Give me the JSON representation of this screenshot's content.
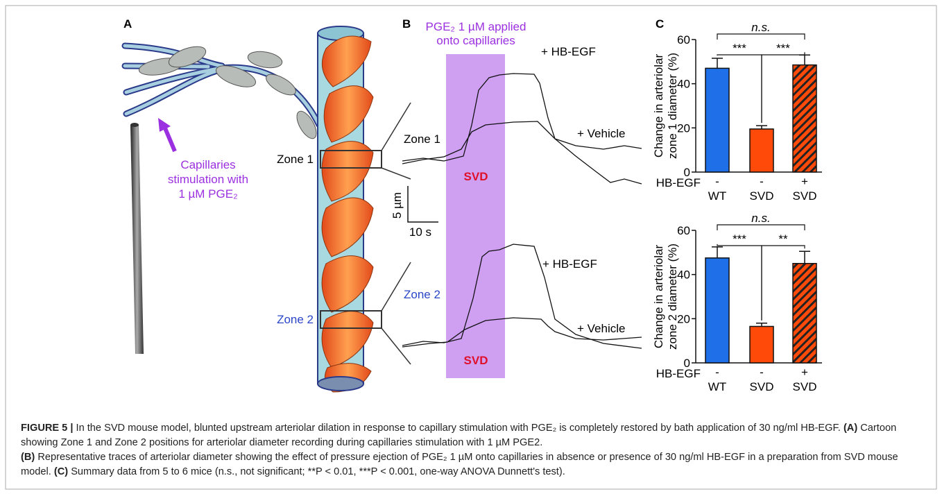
{
  "panels": {
    "a": "A",
    "b": "B",
    "c": "C"
  },
  "cartoon": {
    "zone1": "Zone 1",
    "zone2": "Zone 2",
    "stimulation": [
      "Capillaries",
      "stimulation with",
      "1 µM PGE₂"
    ]
  },
  "traces": {
    "application": [
      "PGE₂ 1 µM applied",
      "onto capillaries"
    ],
    "hb_egf_1": "+ HB-EGF",
    "vehicle_1": "+ Vehicle",
    "svd_1": "SVD",
    "zone1": "Zone 1",
    "hb_egf_2": "+ HB-EGF",
    "vehicle_2": "+ Vehicle",
    "svd_2": "SVD",
    "zone2": "Zone 2",
    "scale_y": "5 µm",
    "scale_x": "10 s"
  },
  "chart_data": [
    {
      "type": "bar",
      "ylabel": [
        "Change in arteriolar",
        "zone 1 diameter (%)"
      ],
      "row_label": "HB-EGF",
      "hb_egf": [
        "-",
        "-",
        "+"
      ],
      "categories": [
        "WT",
        "SVD",
        "SVD"
      ],
      "values": [
        47,
        19.5,
        48.5
      ],
      "errors": [
        4.5,
        1.5,
        4.5
      ],
      "colors": [
        "#1e6fe8",
        "#ff4a0a",
        "#ff4a0a"
      ],
      "hatch": [
        false,
        false,
        true
      ],
      "significance": [
        "***",
        "***",
        "n.s."
      ],
      "ylim": [
        0,
        60
      ],
      "yticks": [
        0,
        20,
        40,
        60
      ]
    },
    {
      "type": "bar",
      "ylabel": [
        "Change in arteriolar",
        "zone 2 diameter (%)"
      ],
      "row_label": "HB-EGF",
      "hb_egf": [
        "-",
        "-",
        "+"
      ],
      "categories": [
        "WT",
        "SVD",
        "SVD"
      ],
      "values": [
        47.5,
        16.5,
        45
      ],
      "errors": [
        5,
        1.5,
        5.5
      ],
      "colors": [
        "#1e6fe8",
        "#ff4a0a",
        "#ff4a0a"
      ],
      "hatch": [
        false,
        false,
        true
      ],
      "significance": [
        "***",
        "**",
        "n.s."
      ],
      "ylim": [
        0,
        60
      ],
      "yticks": [
        0,
        20,
        40,
        60
      ]
    }
  ],
  "caption": {
    "label": "FIGURE 5 |",
    "intro": "In the SVD mouse model, blunted upstream arteriolar dilation in response to capillary stimulation with PGE₂ is completely restored by bath application of 30 ng/ml HB-EGF.",
    "a_label": "(A)",
    "a_text": "Cartoon showing Zone 1 and Zone 2 positions for arteriolar diameter recording during capillaries stimulation with 1 µM PGE2.",
    "b_label": "(B)",
    "b_text": "Representative traces of arteriolar diameter showing the effect of pressure ejection of PGE₂ 1 µM onto capillaries in absence or presence of 30 ng/ml HB-EGF in a preparation from SVD mouse model.",
    "c_label": "(C)",
    "c_text": "Summary data from 5 to 6 mice (n.s., not significant; **P < 0.01, ***P < 0.001, one-way ANOVA Dunnett's test)."
  }
}
